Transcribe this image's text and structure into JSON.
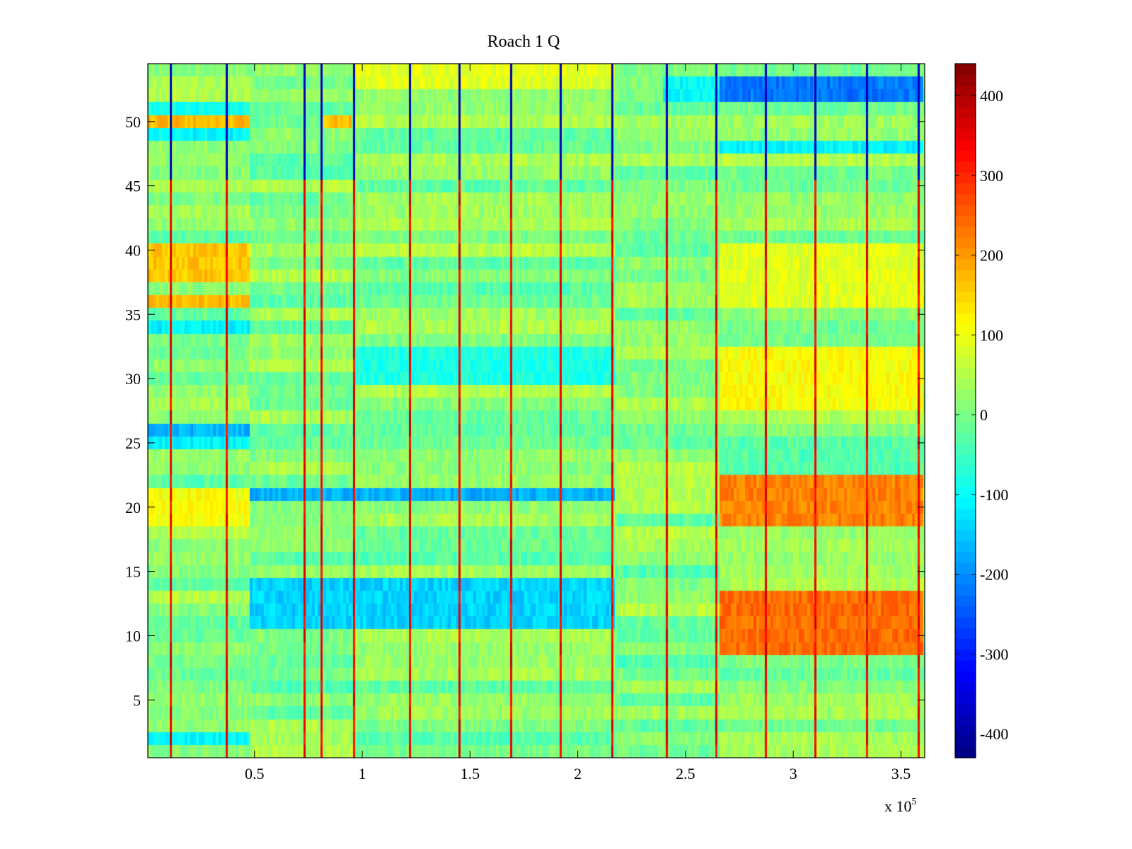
{
  "chart_data": {
    "type": "heatmap",
    "title": "Roach 1 Q",
    "xlabel": "",
    "ylabel": "",
    "x_multiplier_label": "x 10",
    "x_multiplier_exponent": "5",
    "xlim": [
      500,
      361000
    ],
    "ylim": [
      0.5,
      54.5
    ],
    "n_rows": 54,
    "x_ticks": [
      {
        "value": 50000,
        "label": "0.5"
      },
      {
        "value": 100000,
        "label": "1"
      },
      {
        "value": 150000,
        "label": "1.5"
      },
      {
        "value": 200000,
        "label": "2"
      },
      {
        "value": 250000,
        "label": "2.5"
      },
      {
        "value": 300000,
        "label": "3"
      },
      {
        "value": 350000,
        "label": "3.5"
      }
    ],
    "y_ticks": [
      {
        "value": 5,
        "label": "5"
      },
      {
        "value": 10,
        "label": "10"
      },
      {
        "value": 15,
        "label": "15"
      },
      {
        "value": 20,
        "label": "20"
      },
      {
        "value": 25,
        "label": "25"
      },
      {
        "value": 30,
        "label": "30"
      },
      {
        "value": 35,
        "label": "35"
      },
      {
        "value": 40,
        "label": "40"
      },
      {
        "value": 45,
        "label": "45"
      },
      {
        "value": 50,
        "label": "50"
      }
    ],
    "colorbar": {
      "colormap": "jet",
      "clim": [
        -430,
        440
      ],
      "ticks": [
        {
          "value": 400,
          "label": "400"
        },
        {
          "value": 300,
          "label": "300"
        },
        {
          "value": 200,
          "label": "200"
        },
        {
          "value": 100,
          "label": "100"
        },
        {
          "value": 0,
          "label": "0"
        },
        {
          "value": -100,
          "label": "-100"
        },
        {
          "value": -200,
          "label": "-200"
        },
        {
          "value": -300,
          "label": "-300"
        },
        {
          "value": -400,
          "label": "-400"
        }
      ]
    },
    "segment_boundaries": [
      500,
      48000,
      97000,
      217000,
      266000,
      361000
    ],
    "spike_x": [
      11000,
      37000,
      73000,
      81000,
      96000,
      122000,
      145000,
      169000,
      192000,
      216000,
      241000,
      264000,
      287000,
      310000,
      334000,
      358000
    ],
    "regions": [
      {
        "x0": 500,
        "x1": 48000,
        "y0": 49.5,
        "y1": 50.5,
        "value": 170
      },
      {
        "x0": 500,
        "x1": 48000,
        "y0": 48.5,
        "y1": 49.5,
        "value": -110
      },
      {
        "x0": 500,
        "x1": 48000,
        "y0": 50.5,
        "y1": 51.5,
        "value": -90
      },
      {
        "x0": 500,
        "x1": 48000,
        "y0": 37.5,
        "y1": 40.5,
        "value": 160
      },
      {
        "x0": 500,
        "x1": 48000,
        "y0": 35.5,
        "y1": 36.5,
        "value": 170
      },
      {
        "x0": 500,
        "x1": 48000,
        "y0": 33.5,
        "y1": 34.5,
        "value": -110
      },
      {
        "x0": 500,
        "x1": 48000,
        "y0": 25.5,
        "y1": 26.5,
        "value": -170
      },
      {
        "x0": 500,
        "x1": 48000,
        "y0": 24.5,
        "y1": 25.5,
        "value": -110
      },
      {
        "x0": 500,
        "x1": 48000,
        "y0": 18.5,
        "y1": 21.5,
        "value": 110
      },
      {
        "x0": 500,
        "x1": 48000,
        "y0": 1.5,
        "y1": 2.5,
        "value": -100
      },
      {
        "x0": 82000,
        "x1": 95000,
        "y0": 49.5,
        "y1": 50.5,
        "value": 170
      },
      {
        "x0": 48000,
        "x1": 217000,
        "y0": 20.5,
        "y1": 21.5,
        "value": -170
      },
      {
        "x0": 48000,
        "x1": 217000,
        "y0": 10.5,
        "y1": 14.5,
        "value": -140
      },
      {
        "x0": 97000,
        "x1": 217000,
        "y0": 52.5,
        "y1": 54.5,
        "value": 90
      },
      {
        "x0": 97000,
        "x1": 217000,
        "y0": 29.5,
        "y1": 32.5,
        "value": -80
      },
      {
        "x0": 240000,
        "x1": 266000,
        "y0": 51.5,
        "y1": 53.5,
        "value": -100
      },
      {
        "x0": 266000,
        "x1": 361000,
        "y0": 51.5,
        "y1": 53.5,
        "value": -220
      },
      {
        "x0": 266000,
        "x1": 361000,
        "y0": 47.5,
        "y1": 48.5,
        "value": -110
      },
      {
        "x0": 266000,
        "x1": 361000,
        "y0": 8.5,
        "y1": 13.5,
        "value": 240
      },
      {
        "x0": 266000,
        "x1": 361000,
        "y0": 18.5,
        "y1": 22.5,
        "value": 220
      },
      {
        "x0": 266000,
        "x1": 361000,
        "y0": 27.5,
        "y1": 32.5,
        "value": 110
      },
      {
        "x0": 266000,
        "x1": 361000,
        "y0": 35.5,
        "y1": 40.5,
        "value": 90
      }
    ]
  }
}
